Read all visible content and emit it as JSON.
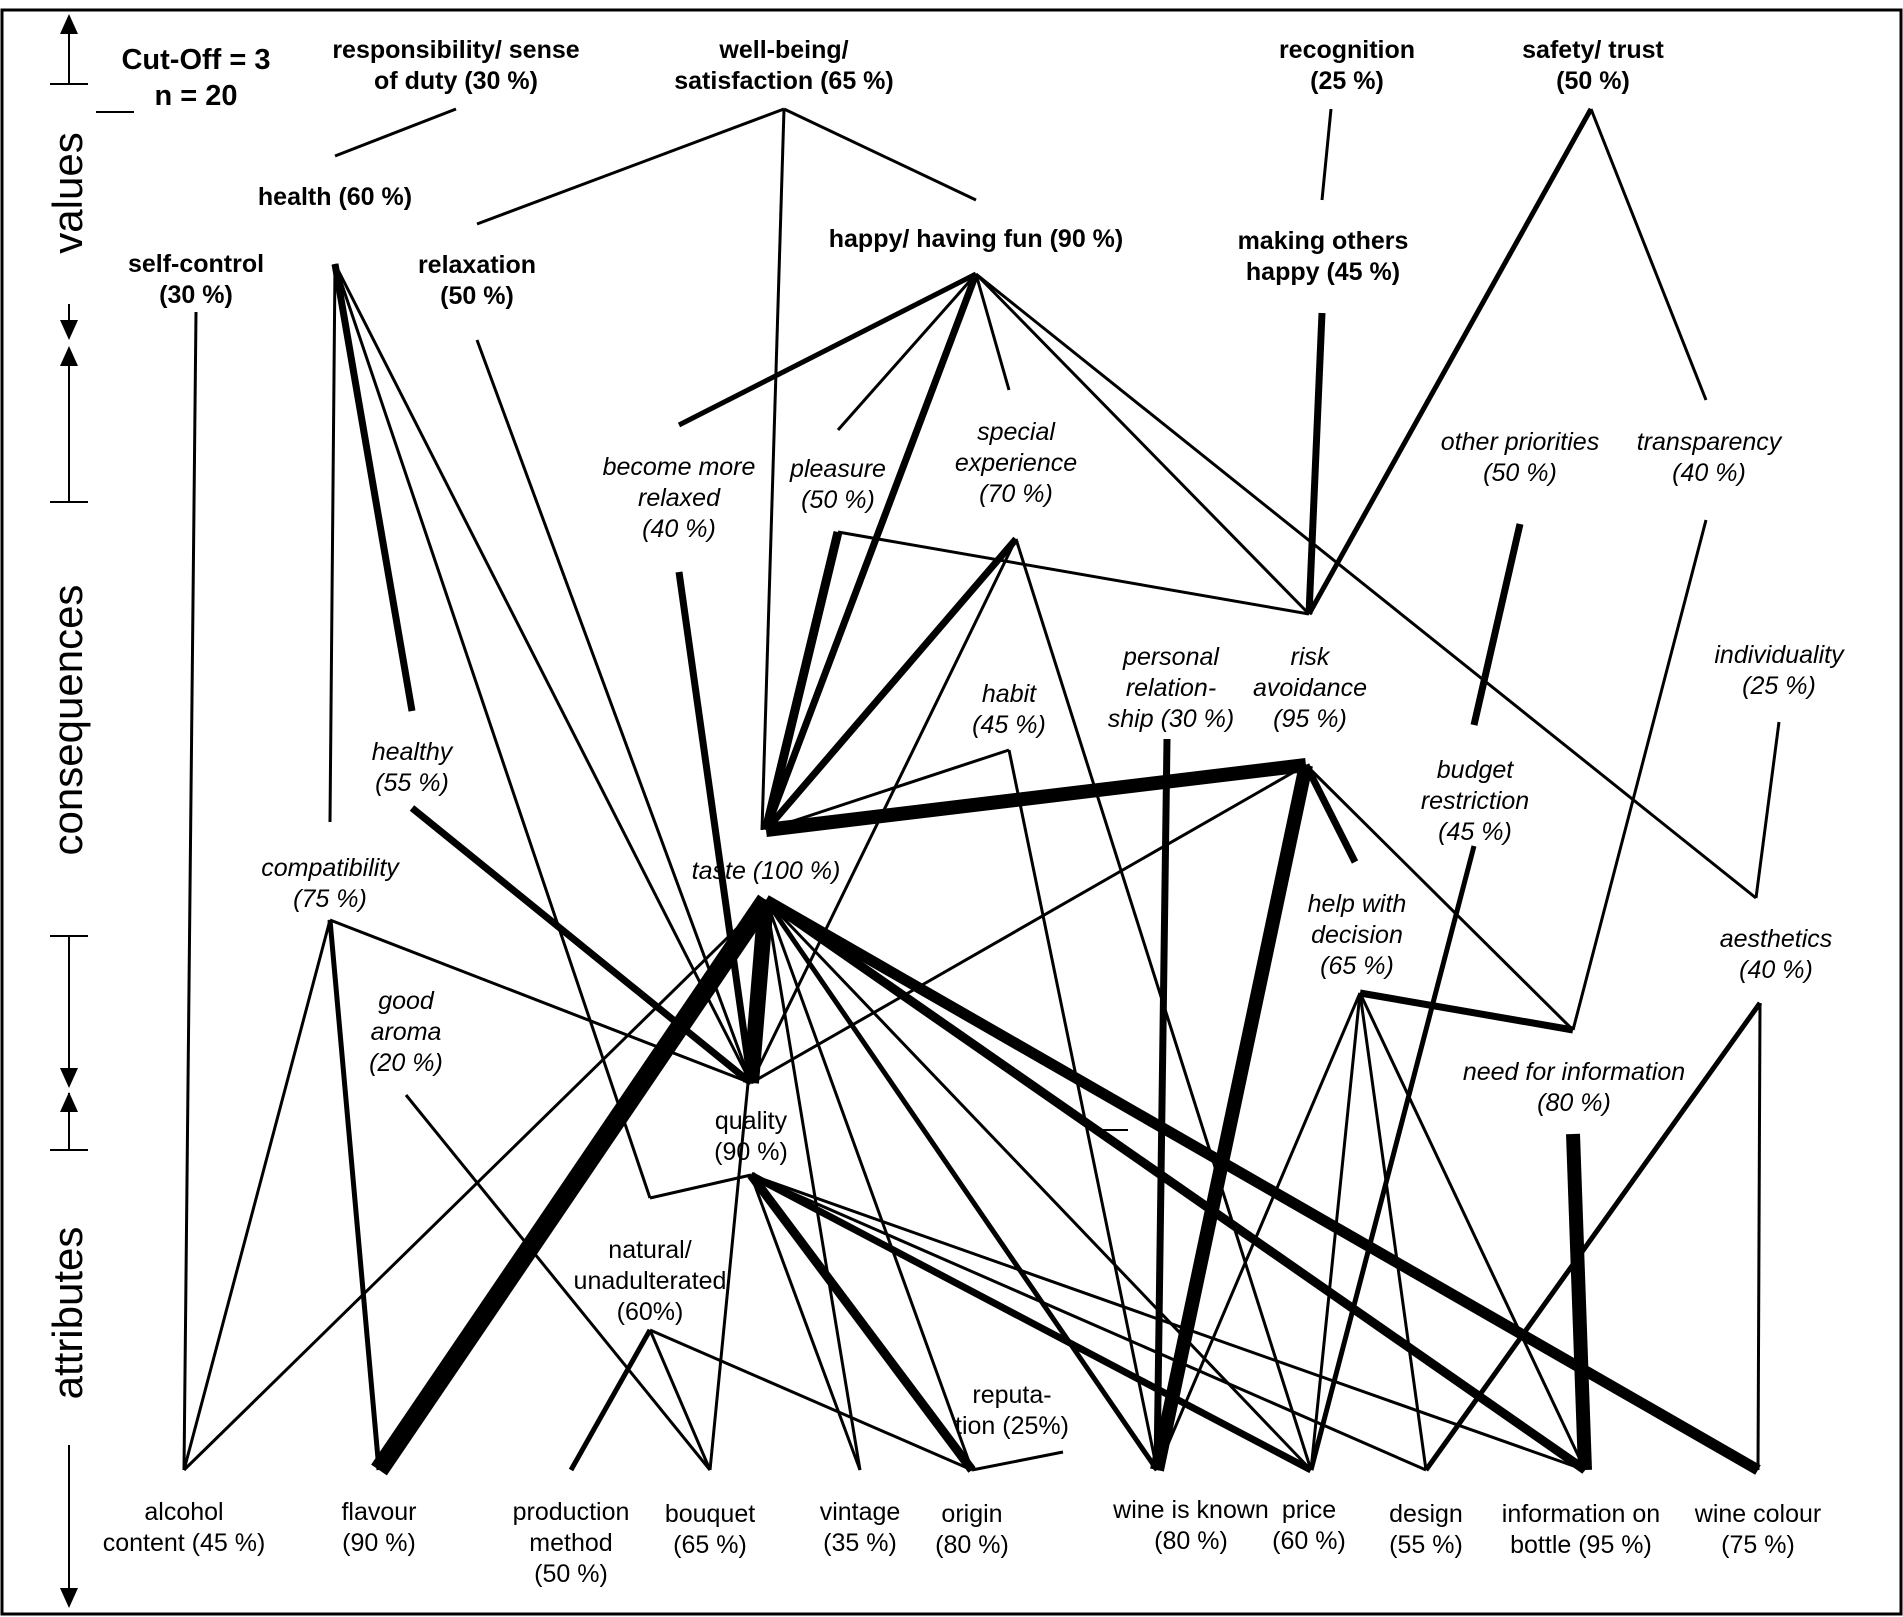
{
  "meta": {
    "cutoff": "Cut-Off = 3",
    "n": "n = 20"
  },
  "levels": {
    "values": "values",
    "consequences": "consequences",
    "attributes": "attributes"
  },
  "nodes": {
    "responsibility": {
      "level": "value",
      "lines": [
        "responsibility/ sense",
        "of duty (30 %)"
      ]
    },
    "wellbeing": {
      "level": "value",
      "lines": [
        "well-being/",
        "satisfaction (65 %)"
      ]
    },
    "recognition": {
      "level": "value",
      "lines": [
        "recognition",
        "(25 %)"
      ]
    },
    "safety": {
      "level": "value",
      "lines": [
        "safety/ trust",
        "(50 %)"
      ]
    },
    "health": {
      "level": "value",
      "lines": [
        "health (60 %)"
      ]
    },
    "selfcontrol": {
      "level": "value",
      "lines": [
        "self-control",
        "(30 %)"
      ]
    },
    "relaxation": {
      "level": "value",
      "lines": [
        "relaxation",
        "(50 %)"
      ]
    },
    "happy": {
      "level": "value",
      "lines": [
        "happy/ having fun (90 %)"
      ]
    },
    "makingothers": {
      "level": "value",
      "lines": [
        "making others",
        "happy (45 %)"
      ]
    },
    "becomerelaxed": {
      "level": "consequence",
      "lines": [
        "become more",
        "relaxed",
        "(40 %)"
      ]
    },
    "pleasure": {
      "level": "consequence",
      "lines": [
        "pleasure",
        "(50 %)"
      ]
    },
    "special": {
      "level": "consequence",
      "lines": [
        "special",
        "experience",
        "(70 %)"
      ]
    },
    "otherpriorities": {
      "level": "consequence",
      "lines": [
        "other priorities",
        "(50 %)"
      ]
    },
    "transparency": {
      "level": "consequence",
      "lines": [
        "transparency",
        "(40 %)"
      ]
    },
    "personal": {
      "level": "consequence",
      "lines": [
        "personal",
        "relation-",
        "ship (30 %)"
      ]
    },
    "risk": {
      "level": "consequence",
      "lines": [
        "risk",
        "avoidance",
        "(95 %)"
      ]
    },
    "individuality": {
      "level": "consequence",
      "lines": [
        "individuality",
        "(25 %)"
      ]
    },
    "habit": {
      "level": "consequence",
      "lines": [
        "habit",
        "(45 %)"
      ]
    },
    "healthy": {
      "level": "consequence",
      "lines": [
        "healthy",
        "(55 %)"
      ]
    },
    "budget": {
      "level": "consequence",
      "lines": [
        "budget",
        "restriction",
        "(45 %)"
      ]
    },
    "compatibility": {
      "level": "consequence",
      "lines": [
        "compatibility",
        "(75 %)"
      ]
    },
    "taste": {
      "level": "consequence",
      "lines": [
        "taste (100 %)"
      ]
    },
    "helpdecision": {
      "level": "consequence",
      "lines": [
        "help with",
        "decision",
        "(65 %)"
      ]
    },
    "aesthetics": {
      "level": "consequence",
      "lines": [
        "aesthetics",
        "(40 %)"
      ]
    },
    "goodaroma": {
      "level": "consequence",
      "lines": [
        "good",
        "aroma",
        "(20 %)"
      ]
    },
    "needinfo": {
      "level": "consequence",
      "lines": [
        "need for information",
        "(80 %)"
      ]
    },
    "quality": {
      "level": "attribute",
      "lines": [
        "quality",
        "(90 %)"
      ]
    },
    "natural": {
      "level": "attribute",
      "lines": [
        "natural/",
        "unadulterated",
        "(60%)"
      ]
    },
    "reputation": {
      "level": "attribute",
      "lines": [
        "reputa-",
        "tion (25%)"
      ]
    },
    "alcohol": {
      "level": "attribute",
      "lines": [
        "alcohol",
        "content (45 %)"
      ]
    },
    "flavour": {
      "level": "attribute",
      "lines": [
        "flavour",
        "(90 %)"
      ]
    },
    "production": {
      "level": "attribute",
      "lines": [
        "production",
        "method",
        "(50 %)"
      ]
    },
    "bouquet": {
      "level": "attribute",
      "lines": [
        "bouquet",
        "(65 %)"
      ]
    },
    "vintage": {
      "level": "attribute",
      "lines": [
        "vintage",
        "(35 %)"
      ]
    },
    "origin": {
      "level": "attribute",
      "lines": [
        "origin",
        "(80 %)"
      ]
    },
    "wineknown": {
      "level": "attribute",
      "lines": [
        "wine is known",
        "(80 %)"
      ]
    },
    "price": {
      "level": "attribute",
      "lines": [
        "price",
        "(60 %)"
      ]
    },
    "design": {
      "level": "attribute",
      "lines": [
        "design",
        "(55 %)"
      ]
    },
    "infobottle": {
      "level": "attribute",
      "lines": [
        "information on",
        "bottle (95 %)"
      ]
    },
    "winecolour": {
      "level": "attribute",
      "lines": [
        "wine colour",
        "(75 %)"
      ]
    }
  },
  "links": [
    {
      "from": "wellbeing",
      "to": "relaxation",
      "strength": 1
    },
    {
      "from": "wellbeing",
      "to": "happy",
      "strength": 1
    },
    {
      "from": "wellbeing",
      "to": "taste",
      "strength": 1
    },
    {
      "from": "responsibility",
      "to": "health",
      "strength": 1
    },
    {
      "from": "recognition",
      "to": "makingothers",
      "strength": 1
    },
    {
      "from": "safety",
      "to": "risk",
      "strength": 2
    },
    {
      "from": "safety",
      "to": "transparency",
      "strength": 1
    },
    {
      "from": "makingothers",
      "to": "risk",
      "strength": 3
    },
    {
      "from": "happy",
      "to": "becomerelaxed",
      "strength": 2
    },
    {
      "from": "happy",
      "to": "pleasure",
      "strength": 1
    },
    {
      "from": "happy",
      "to": "special",
      "strength": 1
    },
    {
      "from": "happy",
      "to": "taste",
      "strength": 3
    },
    {
      "from": "happy",
      "to": "risk",
      "strength": 1
    },
    {
      "from": "happy",
      "to": "aesthetics",
      "strength": 1
    },
    {
      "from": "relaxation",
      "to": "quality",
      "strength": 1
    },
    {
      "from": "health",
      "to": "healthy",
      "strength": 3
    },
    {
      "from": "health",
      "to": "compatibility",
      "strength": 1
    },
    {
      "from": "health",
      "to": "quality",
      "strength": 1
    },
    {
      "from": "health",
      "to": "natural",
      "strength": 1
    },
    {
      "from": "selfcontrol",
      "to": "alcohol",
      "strength": 1
    },
    {
      "from": "becomerelaxed",
      "to": "quality",
      "strength": 3
    },
    {
      "from": "pleasure",
      "to": "taste",
      "strength": 4
    },
    {
      "from": "pleasure",
      "to": "risk",
      "strength": 1
    },
    {
      "from": "special",
      "to": "taste",
      "strength": 3
    },
    {
      "from": "special",
      "to": "quality",
      "strength": 1
    },
    {
      "from": "special",
      "to": "price",
      "strength": 1
    },
    {
      "from": "habit",
      "to": "taste",
      "strength": 1
    },
    {
      "from": "habit",
      "to": "wineknown",
      "strength": 1
    },
    {
      "from": "risk",
      "to": "taste",
      "strength": 6
    },
    {
      "from": "risk",
      "to": "helpdecision",
      "strength": 3
    },
    {
      "from": "risk",
      "to": "wineknown",
      "strength": 6
    },
    {
      "from": "risk",
      "to": "quality",
      "strength": 1
    },
    {
      "from": "risk",
      "to": "needinfo",
      "strength": 1
    },
    {
      "from": "personal",
      "to": "wineknown",
      "strength": 3
    },
    {
      "from": "otherpriorities",
      "to": "budget",
      "strength": 3
    },
    {
      "from": "budget",
      "to": "price",
      "strength": 2
    },
    {
      "from": "transparency",
      "to": "needinfo",
      "strength": 1
    },
    {
      "from": "individuality",
      "to": "aesthetics",
      "strength": 1
    },
    {
      "from": "healthy",
      "to": "quality",
      "strength": 3
    },
    {
      "from": "compatibility",
      "to": "quality",
      "strength": 1
    },
    {
      "from": "compatibility",
      "to": "alcohol",
      "strength": 1
    },
    {
      "from": "compatibility",
      "to": "flavour",
      "strength": 2
    },
    {
      "from": "goodaroma",
      "to": "bouquet",
      "strength": 1
    },
    {
      "from": "taste",
      "to": "quality",
      "strength": 7
    },
    {
      "from": "taste",
      "to": "flavour",
      "strength": 8
    },
    {
      "from": "taste",
      "to": "alcohol",
      "strength": 1
    },
    {
      "from": "taste",
      "to": "bouquet",
      "strength": 1
    },
    {
      "from": "taste",
      "to": "vintage",
      "strength": 1
    },
    {
      "from": "taste",
      "to": "origin",
      "strength": 1
    },
    {
      "from": "taste",
      "to": "wineknown",
      "strength": 2
    },
    {
      "from": "taste",
      "to": "price",
      "strength": 1
    },
    {
      "from": "taste",
      "to": "infobottle",
      "strength": 4
    },
    {
      "from": "taste",
      "to": "winecolour",
      "strength": 5
    },
    {
      "from": "helpdecision",
      "to": "needinfo",
      "strength": 3
    },
    {
      "from": "helpdecision",
      "to": "wineknown",
      "strength": 1
    },
    {
      "from": "helpdecision",
      "to": "price",
      "strength": 1
    },
    {
      "from": "helpdecision",
      "to": "design",
      "strength": 1
    },
    {
      "from": "helpdecision",
      "to": "infobottle",
      "strength": 1
    },
    {
      "from": "aesthetics",
      "to": "design",
      "strength": 2
    },
    {
      "from": "aesthetics",
      "to": "winecolour",
      "strength": 1
    },
    {
      "from": "needinfo",
      "to": "infobottle",
      "strength": 6
    },
    {
      "from": "quality",
      "to": "natural",
      "strength": 1
    },
    {
      "from": "quality",
      "to": "vintage",
      "strength": 1
    },
    {
      "from": "quality",
      "to": "origin",
      "strength": 4
    },
    {
      "from": "quality",
      "to": "price",
      "strength": 3
    },
    {
      "from": "quality",
      "to": "design",
      "strength": 1
    },
    {
      "from": "quality",
      "to": "infobottle",
      "strength": 1
    },
    {
      "from": "natural",
      "to": "production",
      "strength": 2
    },
    {
      "from": "natural",
      "to": "bouquet",
      "strength": 1
    },
    {
      "from": "natural",
      "to": "origin",
      "strength": 1
    },
    {
      "from": "reputation",
      "to": "origin",
      "strength": 1
    }
  ]
}
